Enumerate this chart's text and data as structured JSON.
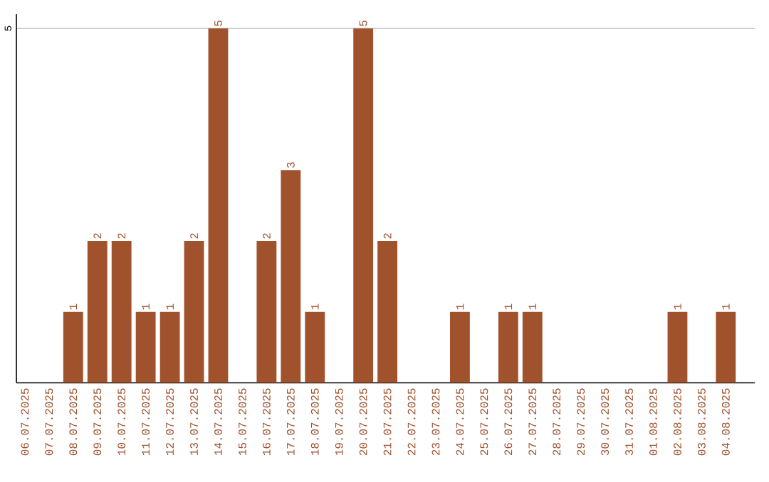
{
  "chart_data": {
    "type": "bar",
    "categories": [
      "06.07.2025",
      "07.07.2025",
      "08.07.2025",
      "09.07.2025",
      "10.07.2025",
      "11.07.2025",
      "12.07.2025",
      "13.07.2025",
      "14.07.2025",
      "15.07.2025",
      "16.07.2025",
      "17.07.2025",
      "18.07.2025",
      "19.07.2025",
      "20.07.2025",
      "21.07.2025",
      "22.07.2025",
      "23.07.2025",
      "24.07.2025",
      "25.07.2025",
      "26.07.2025",
      "27.07.2025",
      "28.07.2025",
      "29.07.2025",
      "30.07.2025",
      "31.07.2025",
      "01.08.2025",
      "02.08.2025",
      "03.08.2025",
      "04.08.2025"
    ],
    "values": [
      0,
      0,
      1,
      2,
      2,
      1,
      1,
      2,
      5,
      0,
      2,
      3,
      1,
      0,
      5,
      2,
      0,
      0,
      1,
      0,
      1,
      1,
      0,
      0,
      0,
      0,
      0,
      1,
      0,
      1
    ],
    "value_labels": [
      null,
      null,
      "1",
      "2",
      "2",
      "1",
      "1",
      "2",
      "5",
      null,
      "2",
      "3",
      "1",
      null,
      "5",
      "2",
      null,
      null,
      "1",
      null,
      "1",
      "1",
      null,
      null,
      null,
      null,
      null,
      "1",
      null,
      "1"
    ],
    "color": "#a0522d",
    "ylim": [
      0,
      5.2
    ],
    "yticks": [
      5
    ],
    "grid": "y"
  }
}
